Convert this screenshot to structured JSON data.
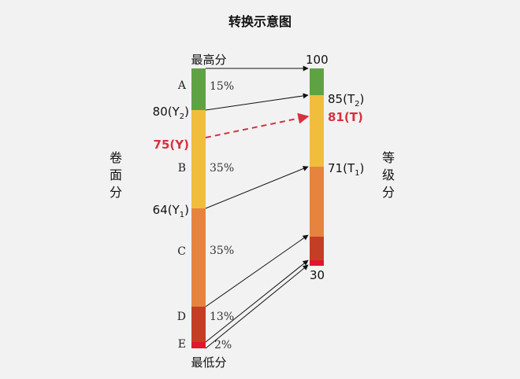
{
  "title": "转换示意图",
  "left_axis_label": [
    "卷",
    "面",
    "分"
  ],
  "right_axis_label": [
    "等",
    "级",
    "分"
  ],
  "top_label": "最高分",
  "bottom_label": "最低分",
  "left_score_labels": {
    "y2": {
      "base": "80(Y",
      "sub": "2",
      "close": ")"
    },
    "y": "75(Y)",
    "y1": {
      "base": "64(Y",
      "sub": "1",
      "close": ")"
    }
  },
  "right_score_labels": {
    "top": "100",
    "t2": {
      "base": "85(T",
      "sub": "2",
      "close": ")"
    },
    "t": "81(T)",
    "t1": {
      "base": "71(T",
      "sub": "1",
      "close": ")"
    },
    "bottom": "30"
  },
  "grades": [
    {
      "letter": "A",
      "percent": "15%",
      "color": "#5fa244"
    },
    {
      "letter": "B",
      "percent": "35%",
      "color": "#f1bd3d"
    },
    {
      "letter": "C",
      "percent": "35%",
      "color": "#e6843f"
    },
    {
      "letter": "D",
      "percent": "13%",
      "color": "#c43e25"
    },
    {
      "letter": "E",
      "percent": "2%",
      "color": "#e0152f"
    }
  ],
  "highlight_color": "#d8303f"
}
